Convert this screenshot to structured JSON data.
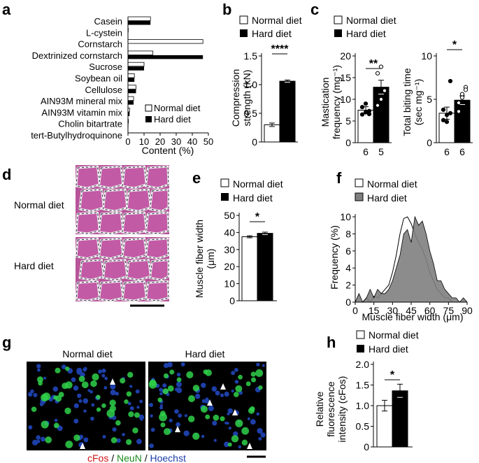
{
  "panel_letters": {
    "a": "a",
    "b": "b",
    "c": "c",
    "d": "d",
    "e": "e",
    "f": "f",
    "g": "g",
    "h": "h"
  },
  "legend": {
    "normal": "Normal diet",
    "hard": "Hard diet"
  },
  "colors": {
    "normal": "#ffffff",
    "hard": "#000000",
    "hard_area": "#7f7f7f",
    "he_pink": "#b04f8f",
    "green": "#2fd14a",
    "blue": "#1d3fa8"
  },
  "panel_d": {
    "row1": "Normal diet",
    "row2": "Hard diet"
  },
  "panel_g": {
    "left_title": "Normal diet",
    "right_title": "Hard diet",
    "caption_cfos": "cFos",
    "caption_sep1": " / ",
    "caption_neun": "NeuN",
    "caption_sep2": " / ",
    "caption_hoechst": "Hoechst"
  },
  "chart_data": [
    {
      "panel": "a",
      "type": "bar",
      "orientation": "horizontal",
      "categories": [
        "Casein",
        "L-cystein",
        "Cornstarch",
        "Dextrinized cornstarch",
        "Sucrose",
        "Soybean oil",
        "Cellulose",
        "AIN93M mineral mix",
        "AIN93M vitamin mix",
        "Cholin bitartrate",
        "tert-Butylhydroquinone"
      ],
      "series": [
        {
          "name": "Normal diet",
          "values": [
            14,
            0.18,
            46.6,
            15.5,
            10,
            4,
            5,
            3.5,
            1,
            0.25,
            0.0008
          ]
        },
        {
          "name": "Hard diet",
          "values": [
            14,
            0.18,
            0,
            46.6,
            10,
            4,
            5,
            3.5,
            1,
            0.25,
            0.0008
          ]
        }
      ],
      "xlabel": "Content (%)",
      "xlim": [
        0,
        50
      ],
      "xticks": [
        0,
        10,
        20,
        30,
        40,
        50
      ]
    },
    {
      "panel": "b",
      "type": "bar",
      "categories": [
        "Normal diet",
        "Hard diet"
      ],
      "values": [
        0.3,
        1.06
      ],
      "errors": [
        0.03,
        0.02
      ],
      "ylabel_line1": "Compression",
      "ylabel_line2": "strength (kN)",
      "ylim": [
        0,
        1.5
      ],
      "yticks": [
        "0",
        "0.5",
        "1.0",
        "1.5"
      ],
      "significance": "****"
    },
    {
      "panel": "c1",
      "type": "bar",
      "categories": [
        "Normal diet",
        "Hard diet"
      ],
      "values": [
        7.5,
        12.8
      ],
      "errors": [
        0.8,
        1.6
      ],
      "n_labels": [
        "6",
        "5"
      ],
      "points": [
        [
          6.5,
          7,
          7.3,
          8.2,
          9,
          6.6
        ],
        [
          16,
          10,
          12,
          8.6,
          17.5
        ]
      ],
      "ylabel_line1": "Mastication",
      "ylabel_line2": "frequency (mg⁻¹)",
      "ylim": [
        0,
        20
      ],
      "yticks": [
        "0",
        "5",
        "10",
        "15",
        "20"
      ],
      "significance": "**"
    },
    {
      "panel": "c2",
      "type": "bar",
      "categories": [
        "Normal diet",
        "Hard diet"
      ],
      "values": [
        3.4,
        4.9
      ],
      "errors": [
        0.7,
        0.5
      ],
      "n_labels": [
        "6",
        "6"
      ],
      "points": [
        [
          2.6,
          3.2,
          3.4,
          3.8,
          2.4,
          7.1
        ],
        [
          3.6,
          5.2,
          6.4,
          4.6,
          5.6,
          6.1
        ]
      ],
      "ylabel_line1": "Total biting time",
      "ylabel_line2": "(sec mg⁻¹)",
      "ylim": [
        0,
        10
      ],
      "yticks": [
        "0",
        "5",
        "10"
      ],
      "significance": "*"
    },
    {
      "panel": "e",
      "type": "bar",
      "categories": [
        "Normal diet",
        "Hard diet"
      ],
      "values": [
        37.5,
        39.5
      ],
      "errors": [
        0.6,
        0.7
      ],
      "ylabel_line1": "Muscle fiber width",
      "ylabel_line2": "(μm)",
      "ylim": [
        0,
        50
      ],
      "yticks": [
        "0",
        "10",
        "20",
        "30",
        "40",
        "50"
      ],
      "significance": "*"
    },
    {
      "panel": "f",
      "type": "area",
      "x": [
        0,
        3,
        6,
        9,
        12,
        15,
        18,
        21,
        24,
        27,
        30,
        33,
        36,
        39,
        42,
        45,
        48,
        51,
        54,
        57,
        60,
        63,
        66,
        69,
        72,
        75,
        78,
        81,
        84,
        87,
        90
      ],
      "series": [
        {
          "name": "Normal diet",
          "values": [
            0,
            0,
            0,
            0.5,
            0,
            0.7,
            0.5,
            1,
            1.5,
            2,
            3.5,
            5.5,
            8,
            9.8,
            10,
            9.2,
            8,
            7,
            6.2,
            5,
            3.5,
            2.5,
            1.5,
            1,
            0.5,
            0.5,
            0,
            0,
            0,
            0,
            0
          ]
        },
        {
          "name": "Hard diet",
          "values": [
            0,
            1,
            0,
            0.5,
            1.5,
            0.5,
            1.5,
            1,
            1,
            1.5,
            2.5,
            4,
            5.5,
            8,
            8.5,
            7,
            10,
            9,
            9.5,
            8,
            6,
            4.5,
            2.5,
            2.5,
            1.5,
            1,
            0.5,
            0.5,
            0,
            0.5,
            0
          ]
        }
      ],
      "xlabel": "Muscle fiber width (μm)",
      "ylabel": "Frequency (%)",
      "xlim": [
        0,
        90
      ],
      "xticks": [
        "0",
        "15",
        "30",
        "45",
        "60",
        "75",
        "90"
      ],
      "ylim": [
        0,
        10
      ],
      "yticks": [
        "0",
        "2",
        "4",
        "6",
        "8",
        "10"
      ]
    },
    {
      "panel": "h",
      "type": "bar",
      "categories": [
        "Normal diet",
        "Hard diet"
      ],
      "values": [
        1.0,
        1.36
      ],
      "errors": [
        0.13,
        0.16
      ],
      "ylabel_line1": "Relative",
      "ylabel_line2": "fluorescence",
      "ylabel_line3": "intensity (cFos)",
      "ylim": [
        0,
        2.0
      ],
      "yticks": [
        "0",
        "0.5",
        "1.0",
        "1.5",
        "2.0"
      ],
      "significance": "*"
    }
  ]
}
